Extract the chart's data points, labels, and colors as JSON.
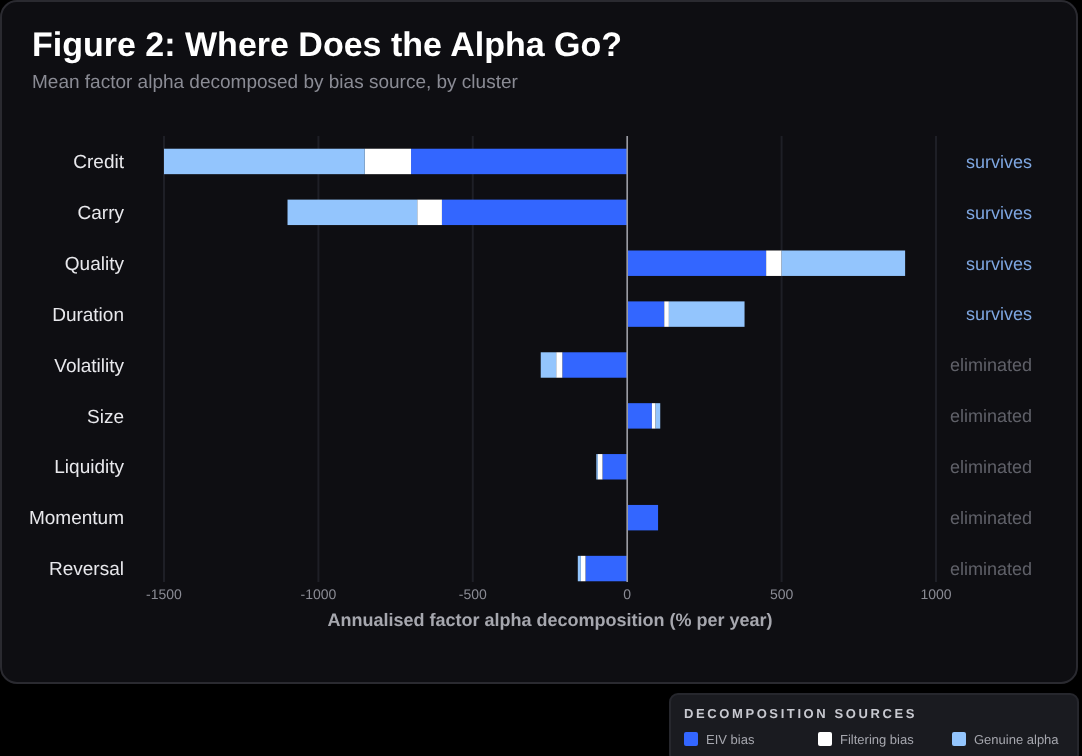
{
  "chart_data": {
    "type": "bar",
    "orientation": "horizontal",
    "stacked": true,
    "title": "Figure 2: Where Does the Alpha Go?",
    "subtitle": "Mean factor alpha decomposed by bias source, by cluster",
    "xlabel": "Annualised factor alpha decomposition (% per year)",
    "legend_title": "DECOMPOSITION SOURCES",
    "categories": [
      "Credit",
      "Carry",
      "Quality",
      "Duration",
      "Volatility",
      "Size",
      "Liquidity",
      "Momentum",
      "Reversal"
    ],
    "y2_categories": [
      "survives",
      "survives",
      "survives",
      "survives",
      "eliminated",
      "eliminated",
      "eliminated",
      "eliminated",
      "eliminated"
    ],
    "series": [
      {
        "name": "EIV bias",
        "color": "#3366ff",
        "values": [
          -700,
          -600,
          450,
          120,
          -210,
          80,
          -80,
          100,
          -135
        ]
      },
      {
        "name": "Filtering bias",
        "color": "#ffffff",
        "values": [
          -150,
          -80,
          50,
          15,
          -20,
          12,
          -15,
          0,
          -15
        ]
      },
      {
        "name": "Genuine alpha",
        "color": "#93c5fd",
        "values": [
          -650,
          -420,
          400,
          245,
          -50,
          15,
          -5,
          0,
          -10
        ]
      }
    ],
    "xlim": [
      -1500,
      1000
    ],
    "xticks": [
      -1500,
      -1000,
      -500,
      0,
      500,
      1000
    ],
    "grid": "x",
    "legend": "bottom right"
  }
}
